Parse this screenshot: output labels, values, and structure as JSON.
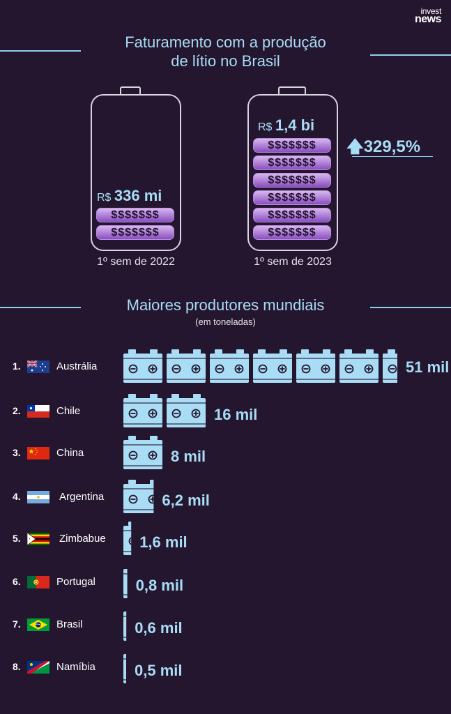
{
  "brand": {
    "line1": "invest",
    "line2": "news"
  },
  "revenue": {
    "title_line1": "Faturamento com a produção",
    "title_line2": "de lítio no Brasil",
    "currency": "R$",
    "period1": {
      "label": "1º sem de 2022",
      "value_label": "336 mi"
    },
    "period2": {
      "label": "1º sem de 2023",
      "value_label": "1,4 bi"
    },
    "money_band_label": "$$$$$$$",
    "growth": "329,5%"
  },
  "producers": {
    "title": "Maiores produtores mundiais",
    "subtitle": "(em toneladas)",
    "rows": [
      {
        "rank": "1.",
        "country": "Austrália",
        "value_label": "51 mil"
      },
      {
        "rank": "2.",
        "country": "Chile",
        "value_label": "16 mil"
      },
      {
        "rank": "3.",
        "country": "China",
        "value_label": "8 mil"
      },
      {
        "rank": "4.",
        "country": "Argentina",
        "value_label": "6,2 mil"
      },
      {
        "rank": "5.",
        "country": "Zimbabue",
        "value_label": "1,6 mil"
      },
      {
        "rank": "6.",
        "country": "Portugal",
        "value_label": "0,8 mil"
      },
      {
        "rank": "7.",
        "country": "Brasil",
        "value_label": "0,6 mil"
      },
      {
        "rank": "8.",
        "country": "Namíbia",
        "value_label": "0,5 mil"
      }
    ]
  },
  "colors": {
    "background": "#24162f",
    "accent": "#a9dcf5",
    "money_bar": "#b07ee0"
  },
  "chart_data": [
    {
      "type": "bar",
      "title": "Faturamento com a produção de lítio no Brasil",
      "categories": [
        "1º sem de 2022",
        "1º sem de 2023"
      ],
      "values": [
        336,
        1400
      ],
      "value_labels": [
        "R$ 336 mi",
        "R$ 1,4 bi"
      ],
      "annotation": "329,5%"
    },
    {
      "type": "bar",
      "title": "Maiores produtores mundiais",
      "subtitle": "(em toneladas)",
      "categories": [
        "Austrália",
        "Chile",
        "China",
        "Argentina",
        "Zimbabue",
        "Portugal",
        "Brasil",
        "Namíbia"
      ],
      "values": [
        51000,
        16000,
        8000,
        6200,
        1600,
        800,
        600,
        500
      ],
      "value_labels": [
        "51 mil",
        "16 mil",
        "8 mil",
        "6,2 mil",
        "1,6 mil",
        "0,8 mil",
        "0,6 mil",
        "0,5 mil"
      ]
    }
  ]
}
